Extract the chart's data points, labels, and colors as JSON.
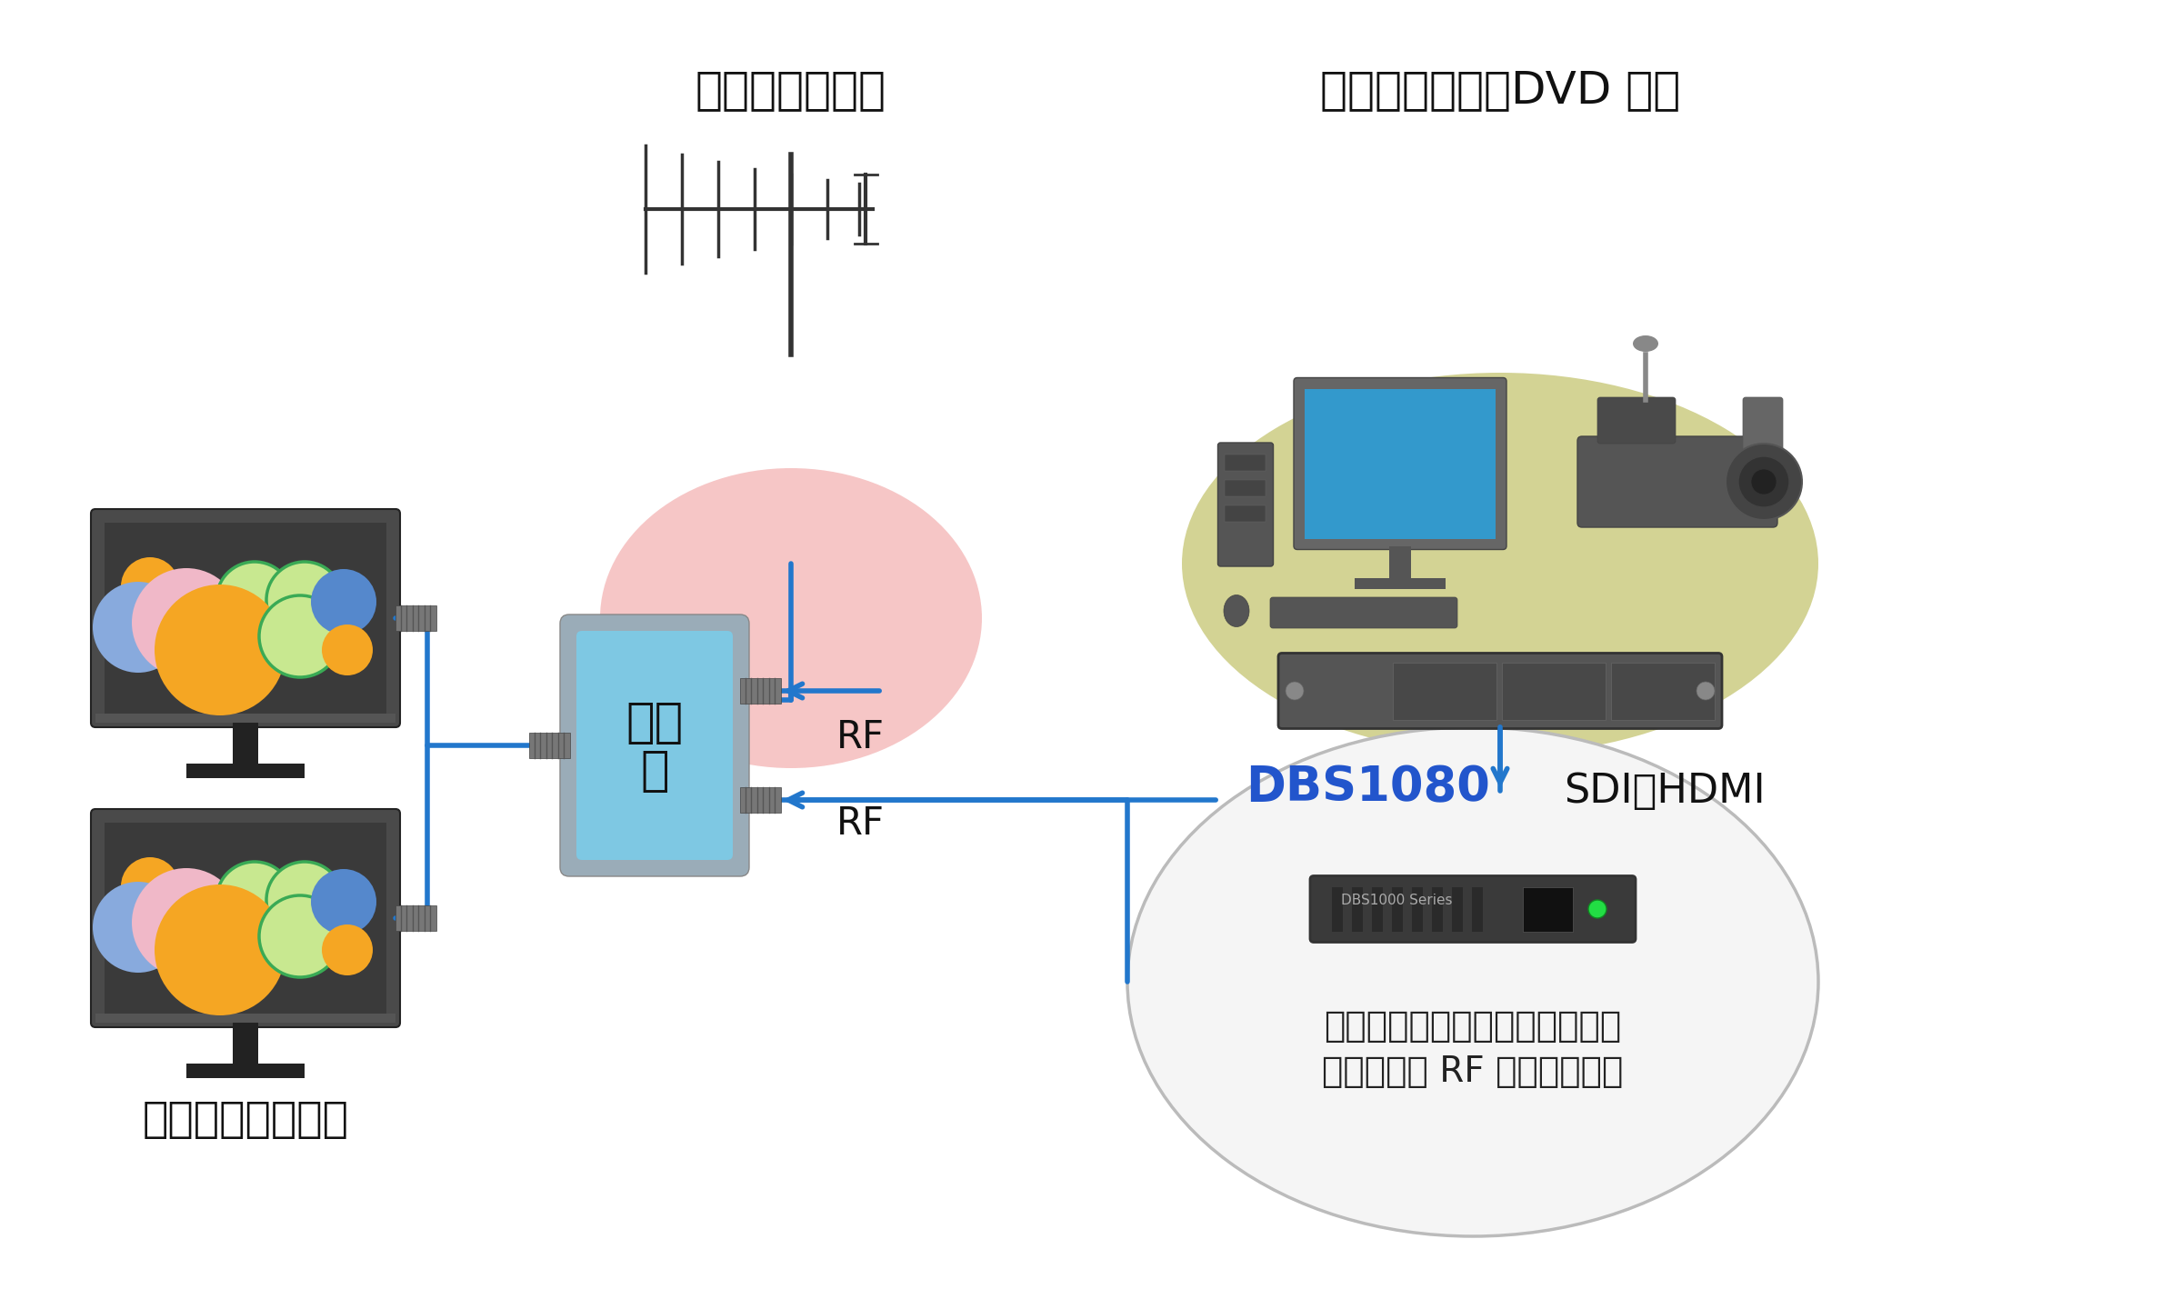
{
  "bg_color": "#ffffff",
  "antenna_label": "地デジアンテナ",
  "video_label": "映像（カメラ・DVD 等）",
  "tv_label": "テレビ・モニター",
  "mixer_text_line1": "混合",
  "mixer_text_line2": "器",
  "dbs_label": "DBS1080",
  "sdi_label": "SDI・HDMI",
  "rf_label1": "RF",
  "rf_label2": "RF",
  "dbs_desc_line1": "入力した映像をエンコードし、",
  "dbs_desc_line2": "再変調して RF 出力します。",
  "arrow_color": "#2277cc",
  "mixer_gray": "#9aacb8",
  "mixer_blue": "#7ec8e3",
  "pink_color": "#f5c0c0",
  "olive_color": "#c8c87a",
  "dbs_circle_fill": "#f5f5f5",
  "dbs_circle_stroke": "#bbbbbb",
  "dark_color": "#333333",
  "tv_screen_color": "#3a3a3a",
  "tv_bezel_color": "#555555"
}
